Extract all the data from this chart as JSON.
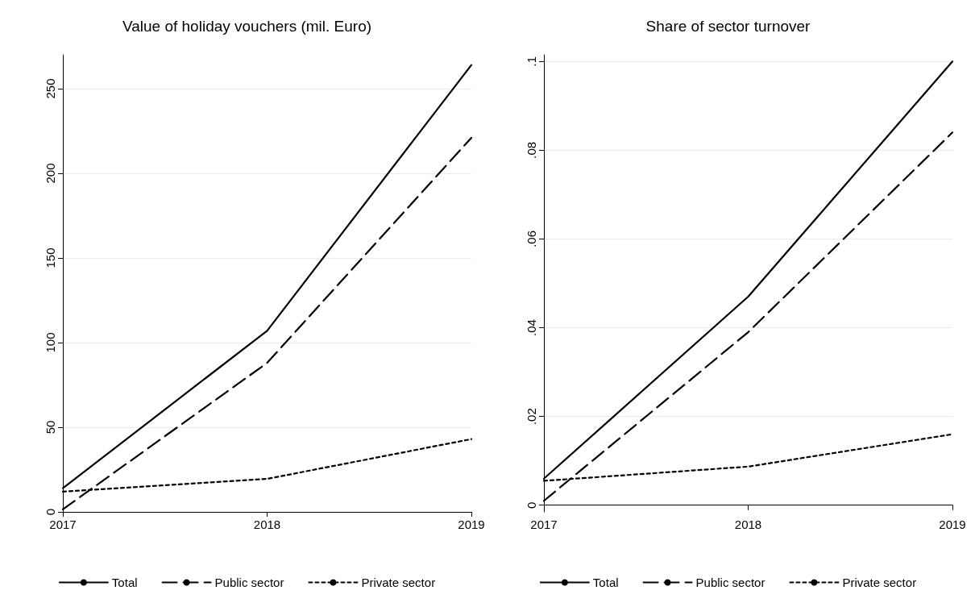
{
  "chart_data": [
    {
      "type": "line",
      "title": "Value of holiday vouchers (mil. Euro)",
      "categories": [
        "2017",
        "2018",
        "2019"
      ],
      "ylim": [
        0,
        270
      ],
      "yticks": [
        0,
        50,
        100,
        150,
        200,
        250
      ],
      "grid": "y",
      "legend": "bottom",
      "marker": "none",
      "series": [
        {
          "name": "Total",
          "color": "#000000",
          "line_style": "solid",
          "values": [
            14,
            107,
            264
          ]
        },
        {
          "name": "Public sector",
          "color": "#000000",
          "line_style": "dashed",
          "values": [
            1.5,
            88,
            221
          ]
        },
        {
          "name": "Private sector",
          "color": "#000000",
          "line_style": "dotted",
          "values": [
            12,
            19.5,
            43
          ]
        }
      ]
    },
    {
      "type": "line",
      "title": "Share of sector turnover",
      "categories": [
        "2017",
        "2018",
        "2019"
      ],
      "ylim": [
        -0.0015,
        0.1015
      ],
      "yticks": [
        {
          "value": 0,
          "label": "0"
        },
        {
          "value": 0.02,
          "label": ".02"
        },
        {
          "value": 0.04,
          "label": ".04"
        },
        {
          "value": 0.06,
          "label": ".06"
        },
        {
          "value": 0.08,
          "label": ".08"
        },
        {
          "value": 0.1,
          "label": ".1"
        }
      ],
      "grid": "y",
      "legend": "bottom",
      "marker": "none",
      "series": [
        {
          "name": "Total",
          "color": "#000000",
          "line_style": "solid",
          "values": [
            0.006,
            0.047,
            0.1
          ]
        },
        {
          "name": "Public sector",
          "color": "#000000",
          "line_style": "dashed",
          "values": [
            0.001,
            0.039,
            0.084
          ]
        },
        {
          "name": "Private sector",
          "color": "#000000",
          "line_style": "dotted",
          "values": [
            0.0055,
            0.0087,
            0.016
          ]
        }
      ]
    }
  ]
}
